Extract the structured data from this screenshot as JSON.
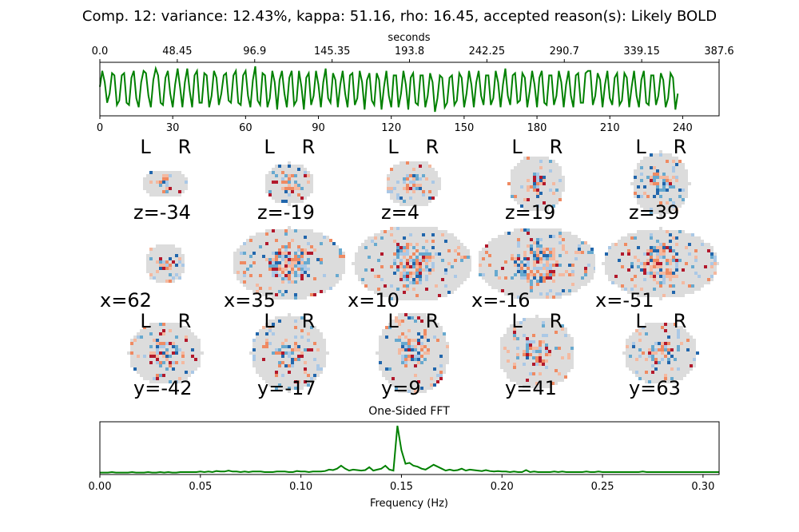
{
  "figure": {
    "title": "Comp. 12: variance: 12.43%, kappa: 51.16, rho: 16.45, accepted reason(s): Likely BOLD",
    "timeseries_top_axis_label": "seconds",
    "fft_title": "One-Sided FFT",
    "fft_xlabel": "Frequency (Hz)",
    "line_color": "#008000"
  },
  "brain_rows": {
    "axial": {
      "labels": [
        "z=-34",
        "z=-19",
        "z=4",
        "z=19",
        "z=39"
      ],
      "orientation_left": "L",
      "orientation_right": "R"
    },
    "sagittal": {
      "labels": [
        "x=62",
        "x=35",
        "x=10",
        "x=-16",
        "x=-51"
      ]
    },
    "coronal": {
      "labels": [
        "y=-42",
        "y=-17",
        "y=9",
        "y=41",
        "y=63"
      ],
      "orientation_left": "L",
      "orientation_right": "R"
    }
  },
  "chart_data": [
    {
      "type": "line",
      "name": "timeseries",
      "xlabel_top": "seconds",
      "xticks_bottom": [
        0,
        30,
        60,
        90,
        120,
        150,
        180,
        210,
        240
      ],
      "xticks_top": [
        "0.0",
        "48.45",
        "96.9",
        "145.35",
        "193.8",
        "242.25",
        "290.7",
        "339.15",
        "387.6"
      ],
      "xlim": [
        0,
        255
      ],
      "ylim": [
        -1,
        1
      ],
      "y": [
        0.1,
        0.8,
        0.3,
        -0.6,
        -0.2,
        0.7,
        0.6,
        -0.7,
        -0.5,
        0.6,
        0.7,
        -0.6,
        -0.7,
        0.5,
        0.8,
        -0.4,
        -0.8,
        0.3,
        0.8,
        0.7,
        -0.3,
        -0.8,
        0.4,
        0.9,
        0.6,
        -0.6,
        -0.7,
        0.5,
        0.8,
        -0.2,
        -0.8,
        0.2,
        0.9,
        0.1,
        -0.8,
        0.3,
        0.9,
        -0.1,
        -0.8,
        0.6,
        0.8,
        -0.6,
        -0.6,
        0.7,
        0.6,
        -0.8,
        -0.3,
        0.8,
        0.5,
        -0.7,
        -0.2,
        0.6,
        0.7,
        -0.5,
        -0.6,
        0.6,
        0.8,
        -0.6,
        -0.7,
        0.6,
        0.8,
        -0.3,
        -0.8,
        0.4,
        1.0,
        -0.5,
        -0.7,
        0.7,
        0.6,
        -0.8,
        -0.4,
        0.8,
        0.3,
        -0.9,
        0.4,
        0.8,
        -0.2,
        -0.8,
        0.5,
        0.8,
        -0.7,
        -0.5,
        0.8,
        0.1,
        -0.9,
        0.5,
        0.7,
        -0.7,
        -0.3,
        0.8,
        0.2,
        -0.8,
        0.3,
        0.9,
        -0.4,
        -0.6,
        0.7,
        0.4,
        -0.8,
        0.2,
        0.8,
        -0.2,
        -0.8,
        0.6,
        0.7,
        -0.7,
        -0.4,
        0.8,
        0.3,
        -0.9,
        0.4,
        0.7,
        -0.5,
        -0.7,
        0.7,
        0.4,
        -0.9,
        0.1,
        0.8,
        -0.3,
        -0.8,
        0.6,
        0.6,
        -0.8,
        -0.2,
        0.8,
        0.2,
        -0.9,
        0.5,
        0.7,
        -0.6,
        -0.7,
        0.6,
        0.6,
        -0.8,
        -0.3,
        0.7,
        0.3,
        -1.0,
        -0.4,
        0.6,
        0.5,
        -0.8,
        -0.6,
        0.5,
        0.6,
        -0.7,
        -0.5,
        0.7,
        0.5,
        -0.8,
        -0.2,
        0.8,
        0.2,
        -0.8,
        0.3,
        0.8,
        -0.3,
        -0.7,
        0.6,
        0.6,
        -0.7,
        -0.4,
        0.8,
        0.3,
        -0.8,
        0.2,
        0.9,
        -0.3,
        -0.7,
        0.6,
        0.7,
        -0.6,
        -0.5,
        0.7,
        0.5,
        -0.8,
        -0.1,
        0.8,
        0.2,
        -0.8,
        0.5,
        0.8,
        -0.6,
        -0.7,
        0.6,
        0.6,
        -0.7,
        -0.3,
        0.8,
        0.3,
        -0.8,
        0.2,
        0.8,
        -0.3,
        -0.8,
        0.6,
        0.7,
        -0.6,
        -0.6,
        0.7,
        0.8,
        0.8,
        -0.7,
        -0.3,
        0.7,
        0.4,
        -0.8,
        0.2,
        0.8,
        -0.4,
        -0.7,
        0.5,
        0.7,
        -0.7,
        -0.5,
        0.7,
        0.5,
        -0.8,
        0.1,
        0.8,
        -0.3,
        -0.8,
        0.4,
        0.8,
        -0.6,
        -0.7,
        0.6,
        0.6,
        -0.7,
        -0.3,
        0.7,
        0.4,
        -0.8,
        -0.4,
        0.7,
        0.5,
        -0.9,
        -0.2
      ]
    },
    {
      "type": "line",
      "name": "fft",
      "title": "One-Sided FFT",
      "xlabel": "Frequency (Hz)",
      "xticks": [
        "0.00",
        "0.05",
        "0.10",
        "0.15",
        "0.20",
        "0.25",
        "0.30"
      ],
      "xlim": [
        0,
        0.308
      ],
      "ylim": [
        0,
        1.05
      ],
      "x_step": 0.002,
      "y": [
        0.04,
        0.04,
        0.04,
        0.05,
        0.04,
        0.04,
        0.04,
        0.04,
        0.05,
        0.04,
        0.04,
        0.04,
        0.05,
        0.04,
        0.04,
        0.05,
        0.04,
        0.05,
        0.04,
        0.04,
        0.05,
        0.05,
        0.05,
        0.05,
        0.05,
        0.06,
        0.05,
        0.06,
        0.05,
        0.07,
        0.06,
        0.06,
        0.08,
        0.06,
        0.06,
        0.05,
        0.06,
        0.05,
        0.06,
        0.06,
        0.06,
        0.05,
        0.05,
        0.05,
        0.06,
        0.06,
        0.06,
        0.05,
        0.05,
        0.07,
        0.06,
        0.06,
        0.05,
        0.06,
        0.06,
        0.06,
        0.07,
        0.1,
        0.09,
        0.12,
        0.18,
        0.12,
        0.08,
        0.1,
        0.09,
        0.08,
        0.09,
        0.15,
        0.08,
        0.1,
        0.12,
        0.18,
        0.1,
        0.08,
        1.0,
        0.5,
        0.22,
        0.24,
        0.18,
        0.16,
        0.12,
        0.1,
        0.15,
        0.2,
        0.16,
        0.12,
        0.08,
        0.1,
        0.08,
        0.09,
        0.12,
        0.08,
        0.1,
        0.09,
        0.08,
        0.07,
        0.09,
        0.07,
        0.06,
        0.07,
        0.06,
        0.06,
        0.05,
        0.06,
        0.05,
        0.05,
        0.09,
        0.05,
        0.06,
        0.05,
        0.05,
        0.05,
        0.05,
        0.06,
        0.05,
        0.06,
        0.05,
        0.05,
        0.05,
        0.05,
        0.05,
        0.06,
        0.05,
        0.05,
        0.06,
        0.05,
        0.05,
        0.05,
        0.05,
        0.05,
        0.05,
        0.05,
        0.05,
        0.05,
        0.05,
        0.06,
        0.05,
        0.05,
        0.05,
        0.05,
        0.05,
        0.05,
        0.05,
        0.05,
        0.05,
        0.05,
        0.05,
        0.05,
        0.05,
        0.05,
        0.05,
        0.05,
        0.05,
        0.05,
        0.05,
        0.05
      ]
    }
  ]
}
